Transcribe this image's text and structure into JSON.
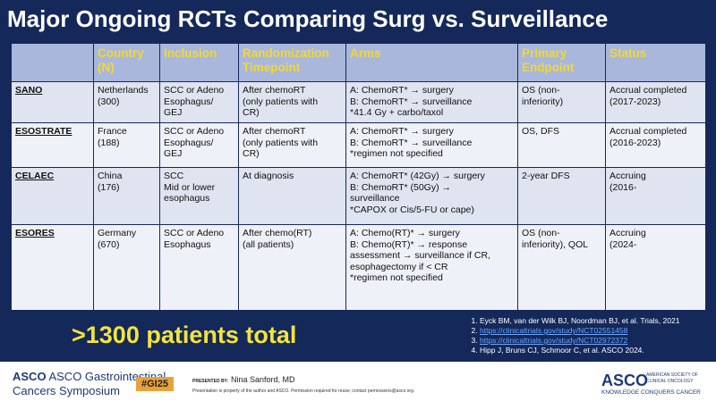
{
  "title": "Major Ongoing RCTs Comparing Surg vs. Surveillance",
  "table": {
    "headers": [
      [
        "Country",
        "(N)"
      ],
      [
        "Inclusion"
      ],
      [
        "Randomization",
        "Timepoint"
      ],
      [
        "Arms"
      ],
      [
        "Primary",
        "Endpoint"
      ],
      [
        "Status"
      ]
    ],
    "rows": [
      {
        "name": "SANO",
        "cells": [
          [
            "Netherlands",
            "(300)"
          ],
          [
            "SCC or Adeno",
            "Esophagus/",
            "GEJ"
          ],
          [
            "After chemoRT",
            "(only patients with",
            "CR)"
          ],
          [
            "A: ChemoRT* → surgery",
            "B: ChemoRT* → surveillance",
            "*41.4 Gy + carbo/taxol"
          ],
          [
            "OS (non-",
            "inferiority)"
          ],
          [
            "Accrual completed",
            "(2017-2023)"
          ]
        ]
      },
      {
        "name": "ESOSTRATE",
        "cells": [
          [
            "France",
            "(188)"
          ],
          [
            "SCC or Adeno",
            "Esophagus/",
            "GEJ"
          ],
          [
            "After chemoRT",
            "(only patients with",
            "CR)"
          ],
          [
            "A: ChemoRT* → surgery",
            "B: ChemoRT* → surveillance",
            "*regimen not specified"
          ],
          [
            "OS, DFS"
          ],
          [
            "Accrual completed",
            "(2016-2023)"
          ]
        ]
      },
      {
        "name": "CELAEC",
        "cells": [
          [
            "China",
            "(176)"
          ],
          [
            "SCC",
            "Mid or lower",
            "esophagus"
          ],
          [
            "At diagnosis"
          ],
          [
            "A: ChemoRT* (42Gy) → surgery",
            "B: ChemoRT* (50Gy) →",
            "surveillance",
            "*CAPOX or Cis/5-FU or cape)"
          ],
          [
            "2-year DFS"
          ],
          [
            "Accruing",
            "(2016-"
          ]
        ]
      },
      {
        "name": "ESORES",
        "cells": [
          [
            "Germany",
            "(670)"
          ],
          [
            "SCC or Adeno",
            "Esophagus"
          ],
          [
            "After chemo(RT)",
            "(all patients)"
          ],
          [
            "A: Chemo(RT)* → surgery",
            "B: Chemo(RT)* → response",
            "assessment → surveillance if CR,",
            "esophagectomy if < CR",
            "*regimen not specified"
          ],
          [
            "OS (non-",
            "inferiority), QOL"
          ],
          [
            "Accruing",
            "(2024-"
          ]
        ]
      }
    ]
  },
  "callout": ">1300 patients total",
  "references": [
    "Eyck BM, van der Wilk BJ, Noordman BJ, et al. Trials, 2021",
    "https://clinicaltrials.gov/study/NCT02551458",
    "https://clinicaltrials.gov/study/NCT02972372",
    "Hipp J, Bruns CJ, Schmoor C, et al. ASCO 2024."
  ],
  "footer": {
    "meeting_line1": "ASCO Gastrointestinal",
    "meeting_line2": "Cancers Symposium",
    "hashtag": "#GI25",
    "presented_by": "PRESENTED BY:",
    "presenter": "Nina Sanford, MD",
    "notice": "Presentation is property of the author and ASCO. Permission required for reuse; contact permissions@asco.org.",
    "org": "ASCO",
    "org_full_1": "AMERICAN SOCIETY OF",
    "org_full_2": "CLINICAL ONCOLOGY",
    "tagline": "KNOWLEDGE CONQUERS CANCER"
  }
}
